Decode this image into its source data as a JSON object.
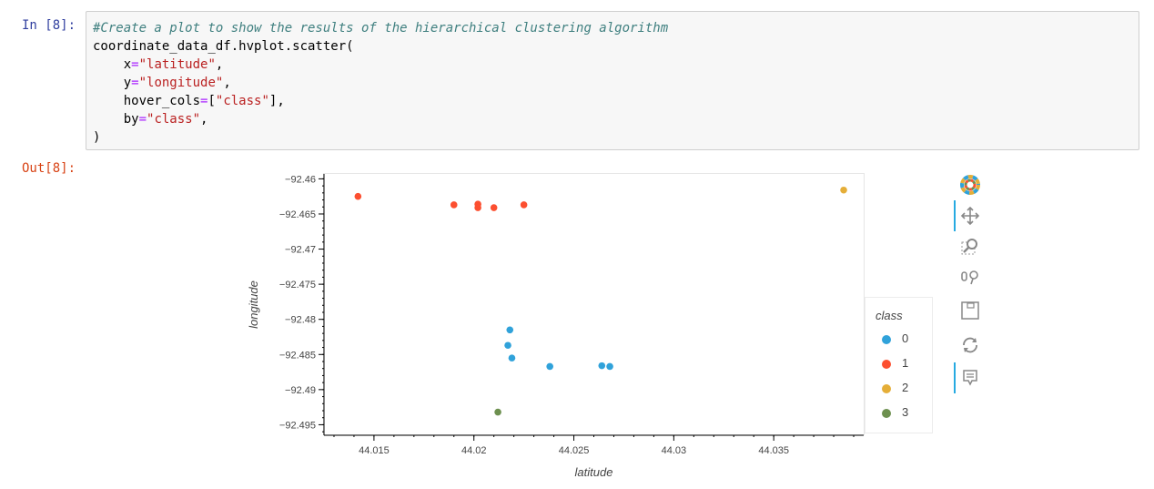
{
  "cell": {
    "in_prompt": "In [8]:",
    "out_prompt": "Out[8]:",
    "code_lines": [
      "#Create a plot to show the results of the hierarchical clustering algorithm",
      "coordinate_data_df.hvplot.scatter(",
      "    x=\"latitude\",",
      "    y=\"longitude\",",
      "    hover_cols=[\"class\"],",
      "    by=\"class\",",
      ")"
    ]
  },
  "chart_data": {
    "type": "scatter",
    "xlabel": "latitude",
    "ylabel": "longitude",
    "xlim": [
      44.0125,
      44.0395
    ],
    "ylim": [
      -92.4965,
      -92.4593
    ],
    "x_ticks": [
      44.015,
      44.02,
      44.025,
      44.03,
      44.035
    ],
    "x_tick_labels": [
      "44.015",
      "44.02",
      "44.025",
      "44.03",
      "44.035"
    ],
    "y_ticks": [
      -92.46,
      -92.465,
      -92.47,
      -92.475,
      -92.48,
      -92.485,
      -92.49,
      -92.495
    ],
    "y_tick_labels": [
      "−92.46",
      "−92.465",
      "−92.47",
      "−92.475",
      "−92.48",
      "−92.485",
      "−92.49",
      "−92.495"
    ],
    "legend_title": "class",
    "legend_position": "right",
    "grid": false,
    "series": [
      {
        "name": "0",
        "color": "#30a2da",
        "points": [
          [
            44.0218,
            -92.4815
          ],
          [
            44.0217,
            -92.4837
          ],
          [
            44.0219,
            -92.4855
          ],
          [
            44.0238,
            -92.4867
          ],
          [
            44.0264,
            -92.4866
          ],
          [
            44.0268,
            -92.4867
          ]
        ]
      },
      {
        "name": "1",
        "color": "#fc4f30",
        "points": [
          [
            44.0142,
            -92.4625
          ],
          [
            44.019,
            -92.4637
          ],
          [
            44.0202,
            -92.4636
          ],
          [
            44.0202,
            -92.4641
          ],
          [
            44.021,
            -92.4641
          ],
          [
            44.0225,
            -92.4637
          ]
        ]
      },
      {
        "name": "2",
        "color": "#e5ae38",
        "points": [
          [
            44.0385,
            -92.4616
          ]
        ]
      },
      {
        "name": "3",
        "color": "#6d904f",
        "points": [
          [
            44.0212,
            -92.4932
          ]
        ]
      }
    ]
  },
  "toolbar": {
    "tools": [
      {
        "name": "bokeh-logo-icon",
        "active": false
      },
      {
        "name": "pan-icon",
        "active": true
      },
      {
        "name": "box-zoom-icon",
        "active": false
      },
      {
        "name": "wheel-zoom-icon",
        "active": false
      },
      {
        "name": "save-icon",
        "active": false
      },
      {
        "name": "reset-icon",
        "active": false
      },
      {
        "name": "hover-icon",
        "active": true
      }
    ]
  }
}
